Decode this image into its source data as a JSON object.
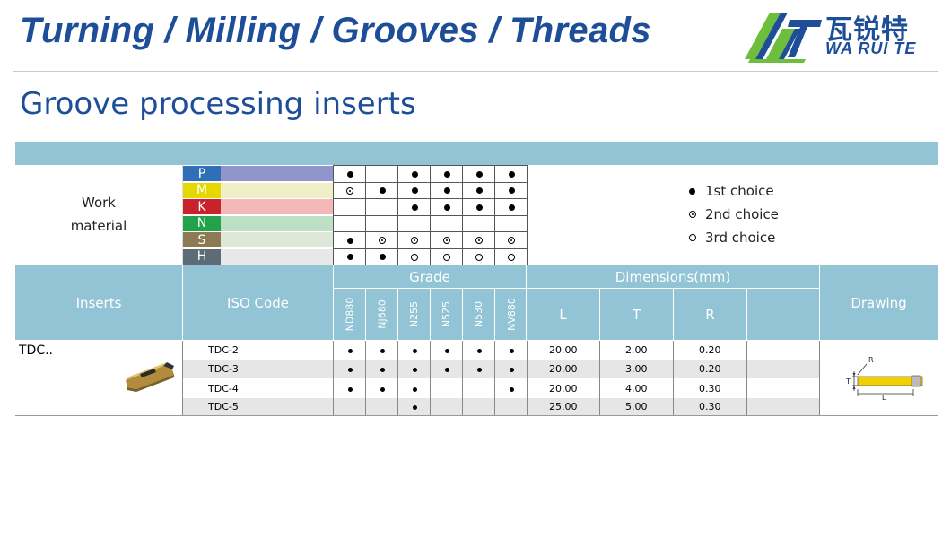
{
  "header": {
    "title": "Turning / Milling / Grooves / Threads"
  },
  "logo": {
    "cn": "瓦锐特",
    "en": "WA RUI TE"
  },
  "section": {
    "title": "Groove processing inserts"
  },
  "work_material": {
    "label": "Work material",
    "materials": [
      {
        "letter": "P",
        "color": "#2e6fb8",
        "bar": "#9095cc"
      },
      {
        "letter": "M",
        "color": "#e4d800",
        "bar": "#f0f0c8"
      },
      {
        "letter": "K",
        "color": "#c8232c",
        "bar": "#f5b8b8"
      },
      {
        "letter": "N",
        "color": "#22a24a",
        "bar": "#bde0c4"
      },
      {
        "letter": "S",
        "color": "#8c7a52",
        "bar": "#dde8d8"
      },
      {
        "letter": "H",
        "color": "#5d6b76",
        "bar": "#e8e8e8"
      }
    ],
    "symbols": [
      [
        "1st",
        "",
        "1st",
        "1st",
        "1st",
        "1st"
      ],
      [
        "2nd",
        "1st",
        "1st",
        "1st",
        "1st",
        "1st"
      ],
      [
        "",
        "",
        "1st",
        "1st",
        "1st",
        "1st"
      ],
      [
        "",
        "",
        "",
        "",
        "",
        ""
      ],
      [
        "1st",
        "2nd",
        "2nd",
        "2nd",
        "2nd",
        "2nd"
      ],
      [
        "1st",
        "1st",
        "3rd",
        "3rd",
        "3rd",
        "3rd"
      ]
    ]
  },
  "legend": [
    {
      "type": "1st",
      "label": "1st choice"
    },
    {
      "type": "2nd",
      "label": "2nd choice"
    },
    {
      "type": "3rd",
      "label": "3rd choice"
    }
  ],
  "table": {
    "headers": {
      "inserts": "Inserts",
      "iso": "ISO Code",
      "grade": "Grade",
      "dimensions": "Dimensions(mm)",
      "L": "L",
      "T": "T",
      "R": "R",
      "drawing": "Drawing"
    },
    "grades": [
      "ND880",
      "NJ680",
      "N255",
      "N525",
      "N530",
      "NV880"
    ],
    "insert_name": "TDC..",
    "rows": [
      {
        "code": "TDC-2",
        "grades": [
          true,
          true,
          true,
          true,
          true,
          true
        ],
        "L": "20.00",
        "T": "2.00",
        "R": "0.20"
      },
      {
        "code": "TDC-3",
        "grades": [
          true,
          true,
          true,
          true,
          true,
          true
        ],
        "L": "20.00",
        "T": "3.00",
        "R": "0.20"
      },
      {
        "code": "TDC-4",
        "grades": [
          true,
          true,
          true,
          false,
          false,
          true
        ],
        "L": "20.00",
        "T": "4.00",
        "R": "0.30"
      },
      {
        "code": "TDC-5",
        "grades": [
          false,
          false,
          true,
          false,
          false,
          false
        ],
        "L": "25.00",
        "T": "5.00",
        "R": "0.30"
      }
    ],
    "drawing_labels": {
      "R": "R",
      "T": "T",
      "L": "L"
    }
  },
  "colors": {
    "brand_blue": "#1f4e99",
    "band_blue": "#92c4d5",
    "logo_green": "#6cbe3c",
    "insert_gold": "#c9a24a"
  }
}
